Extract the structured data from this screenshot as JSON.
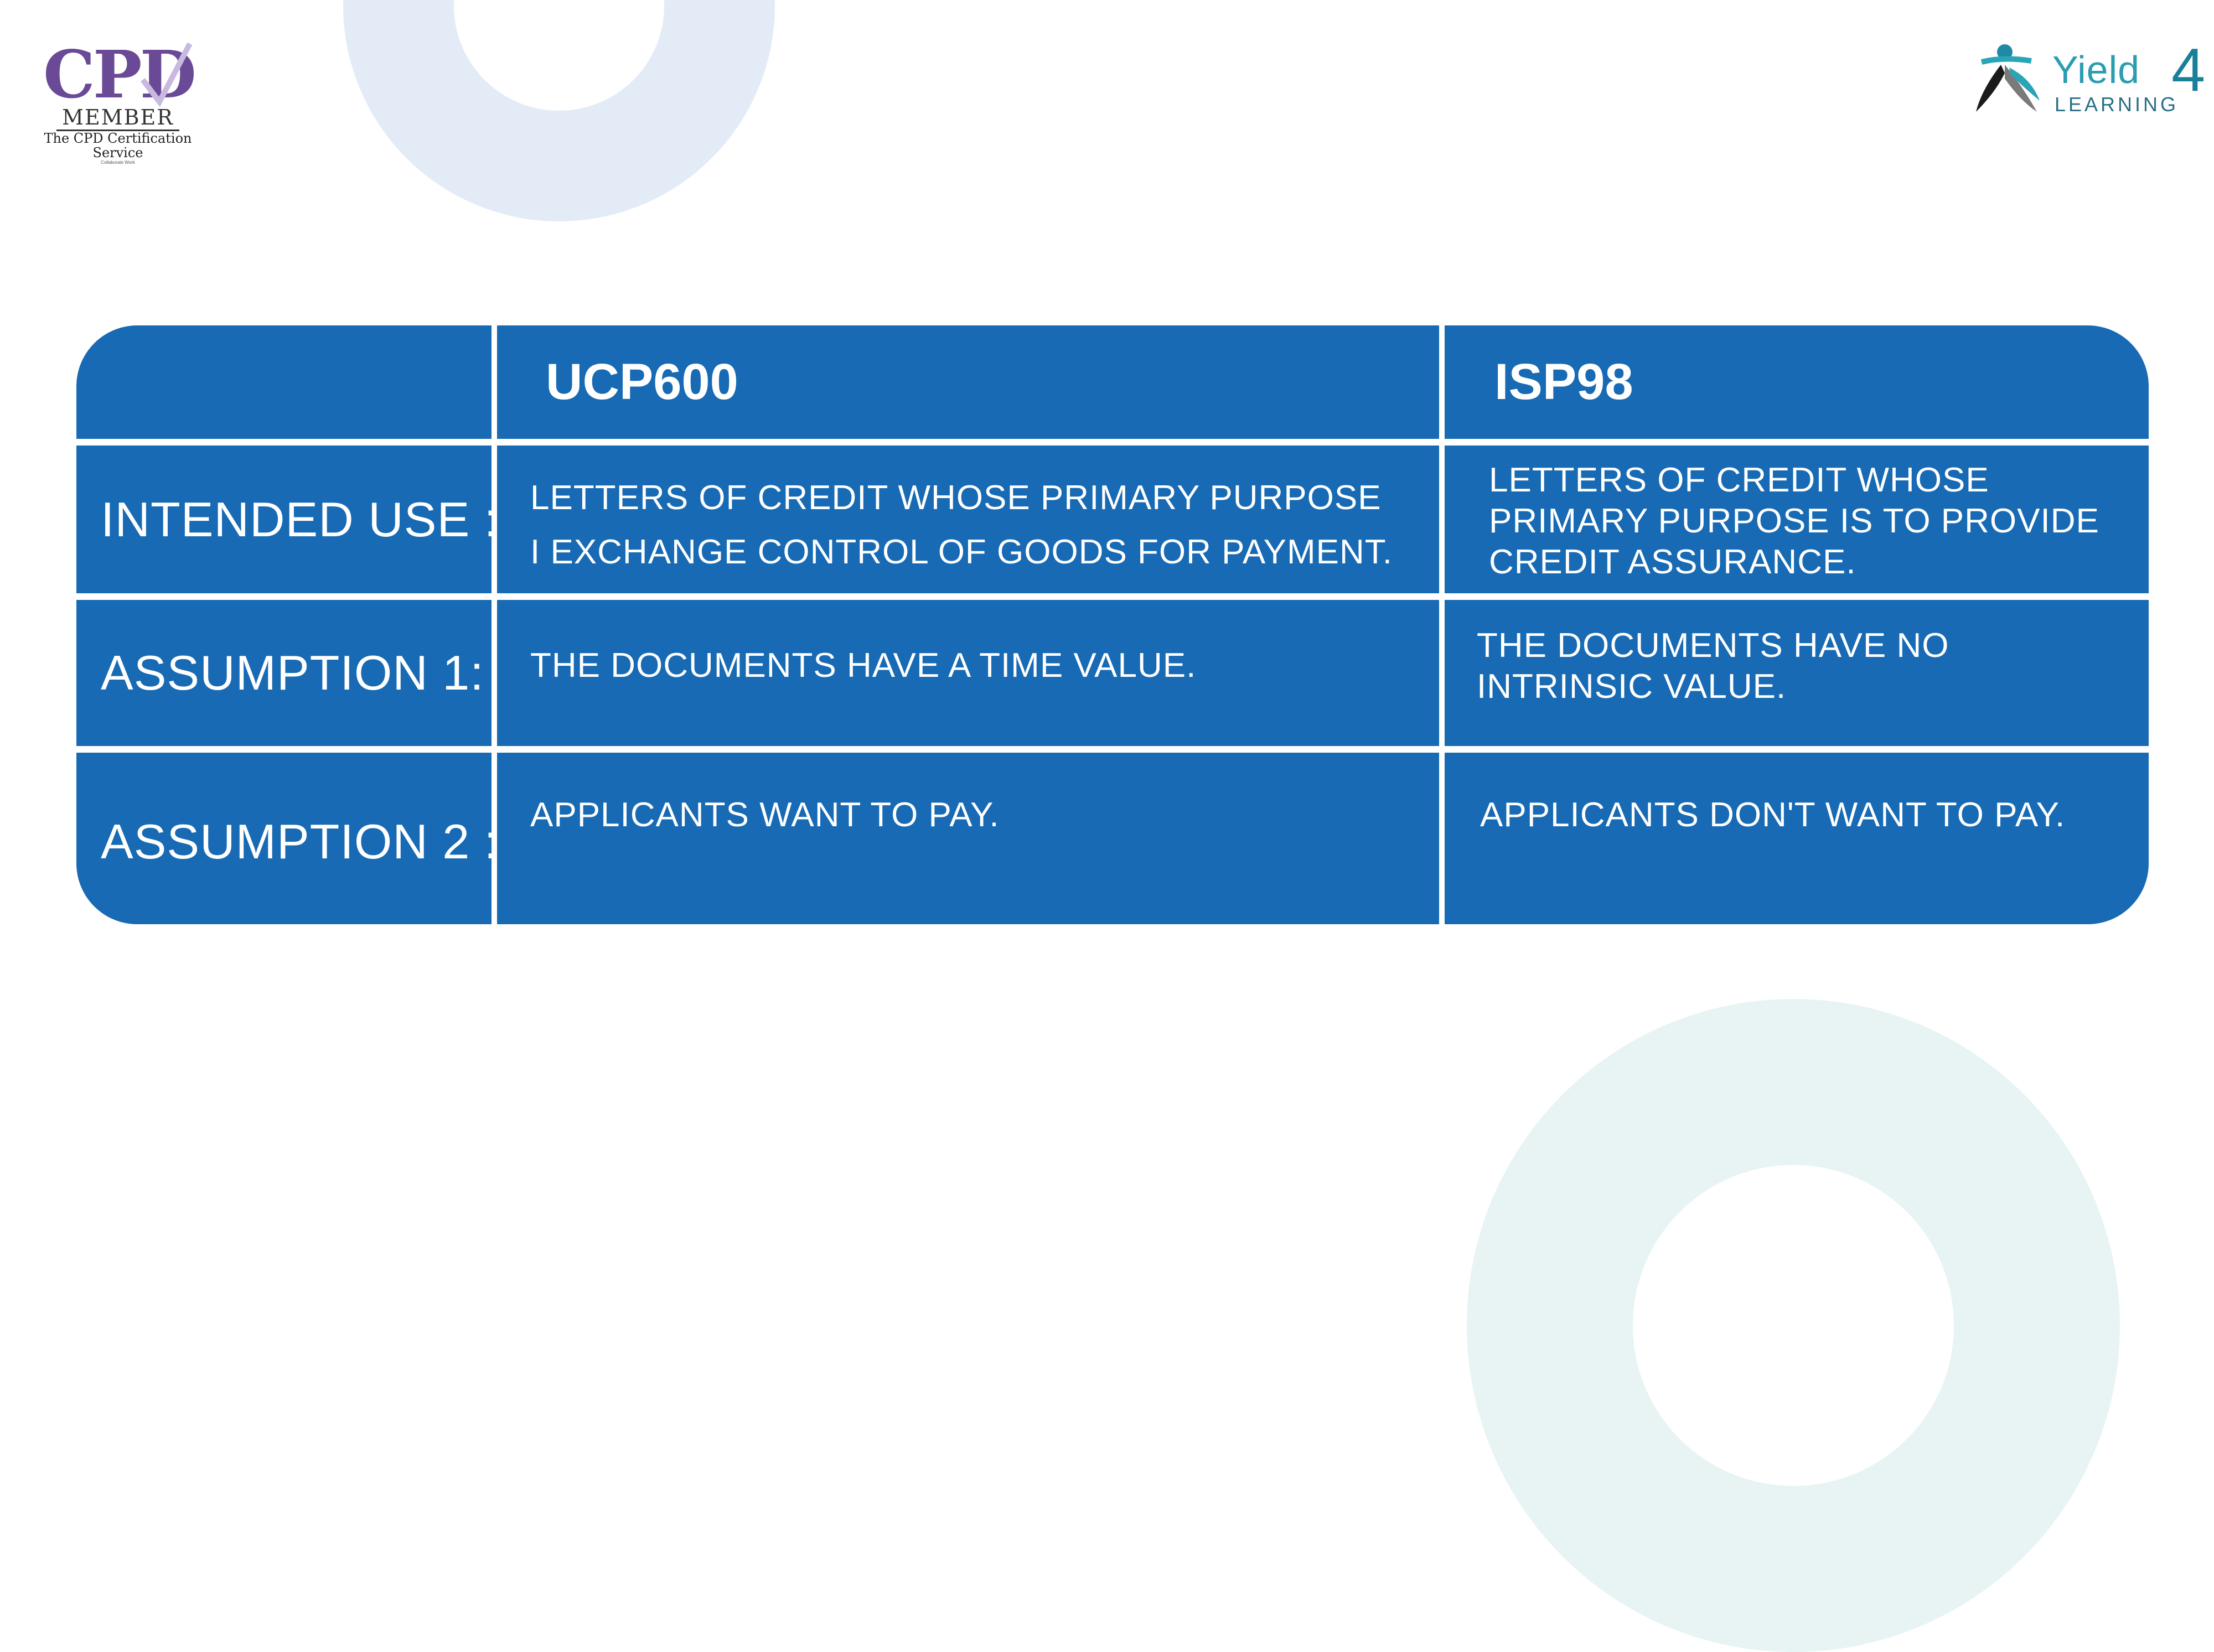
{
  "logos": {
    "cpd": {
      "mark": "CPD",
      "member": "MEMBER",
      "service_line1": "The CPD Certification",
      "service_line2": "Service",
      "fine_print": "Collaborate Work",
      "brand_color": "#6a4a97"
    },
    "yield4": {
      "word": "Yield",
      "four": "4",
      "sub": "LEARNING",
      "brand_color": "#2a9db0"
    }
  },
  "table": {
    "fill_color": "#176ab3",
    "columns": [
      "",
      "UCP600",
      "ISP98"
    ],
    "rows": [
      {
        "label": "INTENDED USE :",
        "ucp600": [
          "LETTERS OF CREDIT WHOSE PRIMARY PURPOSE",
          "I EXCHANGE CONTROL OF GOODS FOR PAYMENT."
        ],
        "isp98": "LETTERS OF CREDIT WHOSE PRIMARY PURPOSE IS TO PROVIDE CREDIT ASSURANCE."
      },
      {
        "label": "ASSUMPTION 1:",
        "ucp600": "THE DOCUMENTS HAVE A TIME VALUE.",
        "isp98": "THE DOCUMENTS HAVE NO INTRINSIC VALUE."
      },
      {
        "label": "ASSUMPTION 2 :",
        "ucp600": "APPLICANTS WANT TO PAY.",
        "isp98": "APPLICANTS DON'T WANT TO PAY."
      }
    ]
  }
}
